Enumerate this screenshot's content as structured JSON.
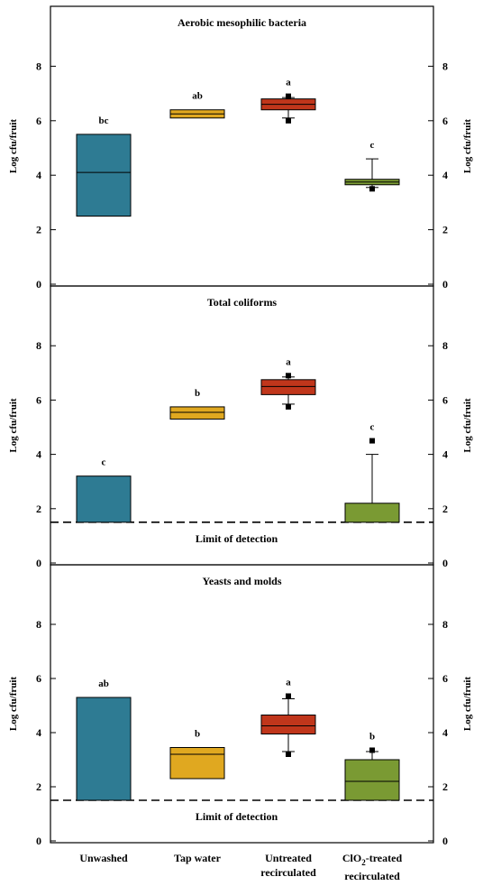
{
  "chart_data": [
    {
      "type": "box",
      "title": "Aerobic mesophilic bacteria",
      "ylabel": "Log cfu/fruit",
      "ylabel_right": "Log cfu/fruit",
      "ylim": [
        0,
        10
      ],
      "yticks": [
        "0",
        "2",
        "4",
        "6",
        "8"
      ],
      "limit_of_detection": null,
      "categories": [
        "Unwashed",
        "Tap water",
        "Untreated recirculated",
        "ClO2-treated recirculated"
      ],
      "boxes": [
        {
          "q1": 2.5,
          "median": 4.1,
          "q3": 5.5,
          "whisker_low": null,
          "whisker_high": null,
          "outliers": [],
          "letter": "bc",
          "color": "#2e7b93"
        },
        {
          "q1": 6.1,
          "median": 6.25,
          "q3": 6.4,
          "whisker_low": null,
          "whisker_high": null,
          "outliers": [],
          "letter": "ab",
          "color": "#e0a820"
        },
        {
          "q1": 6.4,
          "median": 6.6,
          "q3": 6.8,
          "whisker_low": 6.1,
          "whisker_high": 6.85,
          "outliers": [
            6.9,
            6.0
          ],
          "letter": "a",
          "color": "#c0361b"
        },
        {
          "q1": 3.65,
          "median": 3.75,
          "q3": 3.85,
          "whisker_low": 3.55,
          "whisker_high": 4.6,
          "outliers": [
            3.5
          ],
          "letter": "c",
          "color": "#7a9a33"
        }
      ]
    },
    {
      "type": "box",
      "title": "Total coliforms",
      "ylabel": "Log cfu/fruit",
      "ylabel_right": "Log cfu/fruit",
      "ylim": [
        0,
        10
      ],
      "yticks": [
        "0",
        "2",
        "4",
        "6",
        "8"
      ],
      "limit_of_detection": 1.5,
      "limit_label": "Limit of detection",
      "categories": [
        "Unwashed",
        "Tap water",
        "Untreated recirculated",
        "ClO2-treated recirculated"
      ],
      "boxes": [
        {
          "q1": 1.5,
          "median": null,
          "q3": 3.2,
          "whisker_low": null,
          "whisker_high": null,
          "outliers": [],
          "letter": "c",
          "color": "#2e7b93"
        },
        {
          "q1": 5.3,
          "median": 5.55,
          "q3": 5.75,
          "whisker_low": null,
          "whisker_high": null,
          "outliers": [],
          "letter": "b",
          "color": "#e0a820"
        },
        {
          "q1": 6.2,
          "median": 6.5,
          "q3": 6.75,
          "whisker_low": 5.85,
          "whisker_high": 6.85,
          "outliers": [
            6.9,
            5.75
          ],
          "letter": "a",
          "color": "#c0361b"
        },
        {
          "q1": 1.5,
          "median": null,
          "q3": 2.2,
          "whisker_low": null,
          "whisker_high": 4.0,
          "outliers": [
            4.5
          ],
          "letter": "c",
          "color": "#7a9a33"
        }
      ]
    },
    {
      "type": "box",
      "title": "Yeasts and molds",
      "ylabel": "Log cfu/fruit",
      "ylabel_right": "Log cfu/fruit",
      "ylim": [
        0,
        10
      ],
      "yticks": [
        "0",
        "2",
        "4",
        "6",
        "8"
      ],
      "limit_of_detection": 1.5,
      "limit_label": "Limit of detection",
      "categories": [
        "Unwashed",
        "Tap water",
        "Untreated recirculated",
        "ClO2-treated recirculated"
      ],
      "boxes": [
        {
          "q1": 1.5,
          "median": null,
          "q3": 5.3,
          "whisker_low": null,
          "whisker_high": null,
          "outliers": [],
          "letter": "ab",
          "color": "#2e7b93"
        },
        {
          "q1": 2.3,
          "median": 3.2,
          "q3": 3.45,
          "whisker_low": null,
          "whisker_high": null,
          "outliers": [],
          "letter": "b",
          "color": "#e0a820"
        },
        {
          "q1": 3.95,
          "median": 4.25,
          "q3": 4.65,
          "whisker_low": 3.3,
          "whisker_high": 5.25,
          "outliers": [
            5.35,
            3.2
          ],
          "letter": "a",
          "color": "#c0361b"
        },
        {
          "q1": 1.5,
          "median": 2.2,
          "q3": 3.0,
          "whisker_low": null,
          "whisker_high": 3.3,
          "outliers": [
            3.35
          ],
          "letter": "b",
          "color": "#7a9a33"
        }
      ]
    }
  ],
  "x_labels": [
    {
      "lines": [
        "Unwashed"
      ]
    },
    {
      "lines": [
        "Tap water"
      ]
    },
    {
      "lines": [
        "Untreated",
        "recirculated"
      ]
    },
    {
      "lines": [
        "ClO",
        "-treated",
        "recirculated"
      ],
      "subscript": "2"
    }
  ]
}
